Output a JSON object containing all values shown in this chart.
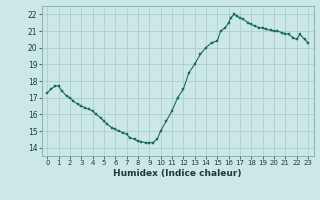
{
  "title": "",
  "xlabel": "Humidex (Indice chaleur)",
  "background_color": "#cce8e6",
  "grid_color": "#a8c8c6",
  "line_color": "#1a6b5a",
  "marker_color": "#1a6b5a",
  "xlim": [
    -0.5,
    23.5
  ],
  "ylim": [
    13.5,
    22.5
  ],
  "yticks": [
    14,
    15,
    16,
    17,
    18,
    19,
    20,
    21,
    22
  ],
  "xticks": [
    0,
    1,
    2,
    3,
    4,
    5,
    6,
    7,
    8,
    9,
    10,
    11,
    12,
    13,
    14,
    15,
    16,
    17,
    18,
    19,
    20,
    21,
    22,
    23
  ],
  "x_vals": [
    0,
    0.3,
    0.7,
    1.0,
    1.3,
    1.7,
    2.0,
    2.3,
    2.7,
    3.0,
    3.3,
    3.7,
    4.0,
    4.3,
    4.7,
    5.0,
    5.3,
    5.7,
    6.0,
    6.3,
    6.7,
    7.0,
    7.3,
    7.7,
    8.0,
    8.3,
    8.7,
    9.0,
    9.3,
    9.7,
    10.0,
    10.5,
    11.0,
    11.5,
    12.0,
    12.5,
    13.0,
    13.5,
    14.0,
    14.5,
    15.0,
    15.3,
    15.7,
    16.0,
    16.2,
    16.5,
    16.7,
    17.0,
    17.3,
    17.7,
    18.0,
    18.3,
    18.7,
    19.0,
    19.3,
    19.7,
    20.0,
    20.3,
    20.7,
    21.0,
    21.3,
    21.7,
    22.0,
    22.3,
    22.7,
    23.0
  ],
  "y_vals": [
    17.3,
    17.5,
    17.7,
    17.7,
    17.4,
    17.1,
    17.0,
    16.8,
    16.6,
    16.5,
    16.4,
    16.3,
    16.2,
    16.0,
    15.8,
    15.6,
    15.4,
    15.2,
    15.1,
    15.0,
    14.9,
    14.8,
    14.6,
    14.5,
    14.4,
    14.35,
    14.3,
    14.3,
    14.3,
    14.5,
    15.0,
    15.6,
    16.2,
    17.0,
    17.5,
    18.5,
    19.0,
    19.6,
    20.0,
    20.3,
    20.4,
    21.0,
    21.2,
    21.5,
    21.8,
    22.0,
    21.9,
    21.8,
    21.7,
    21.5,
    21.4,
    21.3,
    21.2,
    21.2,
    21.1,
    21.05,
    21.0,
    21.0,
    20.9,
    20.85,
    20.8,
    20.6,
    20.5,
    20.8,
    20.5,
    20.3
  ]
}
